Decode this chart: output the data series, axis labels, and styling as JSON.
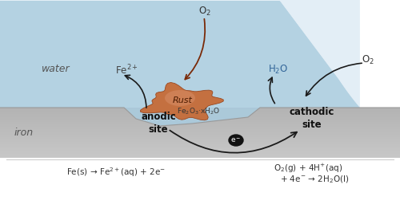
{
  "bg_color": "#ffffff",
  "arrow_color_black": "#1a1a1a",
  "arrow_color_rust": "#7a2a08",
  "text_water": "water",
  "text_iron": "iron",
  "text_fe2plus": "Fe$^{2+}$",
  "text_h2o": "H$_2$O",
  "text_o2_top": "O$_2$",
  "text_o2_right": "O$_2$",
  "text_rust": "Rust",
  "text_rust_formula": "Fe$_2$O$_3$·xH$_2$O",
  "text_anodic": "anodic\nsite",
  "text_cathodic": "cathodic\nsite",
  "text_eq_left_1": "Fe(s) → Fe$^{2+}$(aq) + 2e$^{-}$",
  "text_eq_right_1": "O$_2$(g) + 4H$^{+}$(aq)",
  "text_eq_right_2": "+ 4e$^{-}$ → 2H$_2$O(l)",
  "water_fill": "#aaccdf",
  "water_highlight": "#cce0ef",
  "iron_light": "#c8c8c8",
  "iron_dark": "#b0b0b0",
  "rust_fill": "#c47040",
  "rust_edge": "#9a4820",
  "pit_fill": "#b8b8c8",
  "ecirc_fill": "#111111"
}
